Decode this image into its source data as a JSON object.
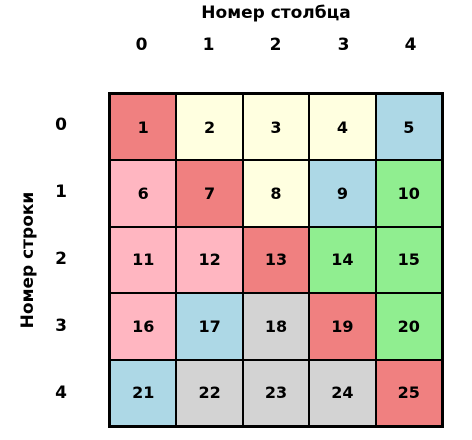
{
  "title_top": "Номер столбца",
  "title_left": "Номер строки",
  "col_labels": [
    "0",
    "1",
    "2",
    "3",
    "4"
  ],
  "row_labels": [
    "0",
    "1",
    "2",
    "3",
    "4"
  ],
  "colors": {
    "red": "#F08080",
    "yellow": "#FFFFE0",
    "pink": "#FFB6C1",
    "blue": "#ADD8E6",
    "green": "#90EE90",
    "gray": "#D3D3D3"
  },
  "cells": [
    [
      "1",
      "2",
      "3",
      "4",
      "5"
    ],
    [
      "6",
      "7",
      "8",
      "9",
      "10"
    ],
    [
      "11",
      "12",
      "13",
      "14",
      "15"
    ],
    [
      "16",
      "17",
      "18",
      "19",
      "20"
    ],
    [
      "21",
      "22",
      "23",
      "24",
      "25"
    ]
  ],
  "cell_colors": [
    [
      "red",
      "yellow",
      "yellow",
      "yellow",
      "blue"
    ],
    [
      "pink",
      "red",
      "yellow",
      "blue",
      "green"
    ],
    [
      "pink",
      "pink",
      "red",
      "green",
      "green"
    ],
    [
      "pink",
      "blue",
      "gray",
      "red",
      "green"
    ],
    [
      "blue",
      "gray",
      "gray",
      "gray",
      "red"
    ]
  ]
}
